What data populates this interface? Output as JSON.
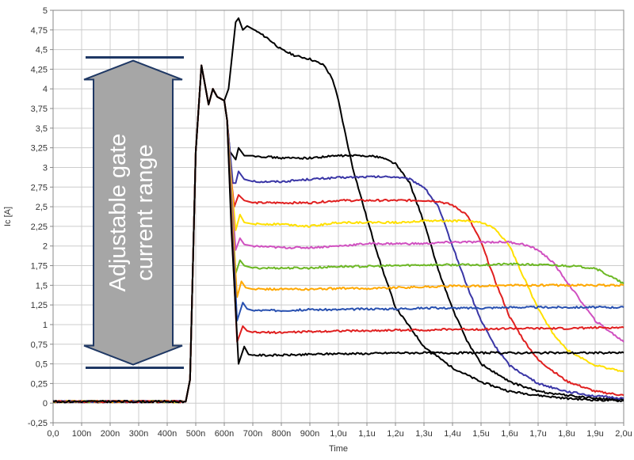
{
  "chart_data": {
    "type": "line",
    "xlabel": "Time",
    "ylabel": "Ic [A]",
    "xlim": [
      0,
      2.0
    ],
    "ylim": [
      -0.25,
      5
    ],
    "x_ticks": [
      0,
      0.1,
      0.2,
      0.3,
      0.4,
      0.5,
      0.6,
      0.7,
      0.8,
      0.9,
      1.0,
      1.1,
      1.2,
      1.3,
      1.4,
      1.5,
      1.6,
      1.7,
      1.8,
      1.9,
      2.0
    ],
    "x_tick_labels": [
      "0,0",
      "100n",
      "200n",
      "300n",
      "400n",
      "500n",
      "600n",
      "700n",
      "800n",
      "900n",
      "1,0u",
      "1,1u",
      "1,2u",
      "1,3u",
      "1,4u",
      "1,5u",
      "1,6u",
      "1,7u",
      "1,8u",
      "1,9u",
      "2,0u"
    ],
    "y_ticks": [
      -0.25,
      0,
      0.25,
      0.5,
      0.75,
      1,
      1.25,
      1.5,
      1.75,
      2,
      2.25,
      2.5,
      2.75,
      3,
      3.25,
      3.5,
      3.75,
      4,
      4.25,
      4.5,
      4.75,
      5
    ],
    "y_tick_labels": [
      "-0,25",
      "0",
      "0,25",
      "0,5",
      "0,75",
      "1",
      "1,25",
      "1,5",
      "1,75",
      "2",
      "2,25",
      "2,5",
      "2,75",
      "3",
      "3,25",
      "3,5",
      "3,75",
      "4",
      "4,25",
      "4,5",
      "4,75",
      "5"
    ],
    "grid": true,
    "series": [
      {
        "color": "#000000",
        "x": [
          0,
          0.465,
          0.48,
          0.5,
          0.52,
          0.545,
          0.56,
          0.575,
          0.6,
          0.615,
          0.64,
          0.65,
          0.665,
          0.68,
          0.705,
          0.75,
          0.8,
          0.85,
          0.9,
          0.95,
          0.98,
          1.0,
          1.02,
          1.05,
          1.1,
          1.15,
          1.2,
          1.3,
          1.4,
          1.5,
          1.6,
          1.7,
          1.8,
          1.9,
          2.0
        ],
        "y": [
          0.02,
          0.02,
          0.3,
          3.2,
          4.3,
          3.8,
          4.0,
          3.9,
          3.85,
          4.0,
          4.85,
          4.9,
          4.75,
          4.8,
          4.75,
          4.65,
          4.5,
          4.42,
          4.38,
          4.3,
          4.12,
          3.85,
          3.5,
          3.0,
          2.35,
          1.75,
          1.22,
          0.72,
          0.45,
          0.27,
          0.15,
          0.1,
          0.06,
          0.04,
          0.03
        ]
      },
      {
        "color": "#000000",
        "x": [
          0,
          0.465,
          0.48,
          0.5,
          0.52,
          0.545,
          0.56,
          0.575,
          0.6,
          0.61,
          0.62,
          0.64,
          0.65,
          0.67,
          0.7,
          0.8,
          0.9,
          1.0,
          1.1,
          1.15,
          1.2,
          1.25,
          1.3,
          1.35,
          1.4,
          1.45,
          1.5,
          1.6,
          1.7,
          1.8,
          1.9,
          2.0
        ],
        "y": [
          0.02,
          0.02,
          0.3,
          3.2,
          4.3,
          3.8,
          4.0,
          3.9,
          3.85,
          3.6,
          3.2,
          3.1,
          3.25,
          3.15,
          3.15,
          3.12,
          3.12,
          3.15,
          3.15,
          3.13,
          3.05,
          2.8,
          2.3,
          1.7,
          1.2,
          0.8,
          0.5,
          0.27,
          0.15,
          0.1,
          0.06,
          0.04
        ]
      },
      {
        "color": "#3a36a6",
        "x": [
          0,
          0.465,
          0.48,
          0.5,
          0.52,
          0.545,
          0.56,
          0.575,
          0.6,
          0.61,
          0.62,
          0.63,
          0.64,
          0.65,
          0.67,
          0.7,
          0.8,
          0.9,
          1.0,
          1.1,
          1.2,
          1.25,
          1.3,
          1.35,
          1.4,
          1.45,
          1.5,
          1.55,
          1.6,
          1.7,
          1.8,
          1.9,
          2.0
        ],
        "y": [
          0.02,
          0.02,
          0.3,
          3.2,
          4.3,
          3.8,
          4.0,
          3.9,
          3.85,
          3.6,
          3.2,
          2.8,
          2.8,
          2.95,
          2.85,
          2.82,
          2.82,
          2.85,
          2.87,
          2.88,
          2.88,
          2.85,
          2.75,
          2.5,
          2.0,
          1.5,
          1.05,
          0.72,
          0.48,
          0.25,
          0.15,
          0.09,
          0.06
        ]
      },
      {
        "color": "#e02020",
        "x": [
          0,
          0.465,
          0.48,
          0.5,
          0.52,
          0.545,
          0.56,
          0.575,
          0.6,
          0.61,
          0.62,
          0.635,
          0.65,
          0.67,
          0.7,
          0.8,
          0.9,
          1.0,
          1.1,
          1.2,
          1.3,
          1.35,
          1.4,
          1.45,
          1.5,
          1.55,
          1.6,
          1.65,
          1.7,
          1.8,
          1.9,
          2.0
        ],
        "y": [
          0.02,
          0.02,
          0.3,
          3.2,
          4.3,
          3.8,
          4.0,
          3.9,
          3.85,
          3.6,
          3.0,
          2.5,
          2.65,
          2.58,
          2.55,
          2.55,
          2.55,
          2.58,
          2.58,
          2.58,
          2.58,
          2.57,
          2.52,
          2.4,
          2.05,
          1.55,
          1.1,
          0.8,
          0.55,
          0.28,
          0.15,
          0.1
        ]
      },
      {
        "color": "#ffe000",
        "x": [
          0,
          0.465,
          0.48,
          0.5,
          0.52,
          0.545,
          0.56,
          0.575,
          0.6,
          0.61,
          0.625,
          0.64,
          0.655,
          0.67,
          0.7,
          0.8,
          0.9,
          1.0,
          1.1,
          1.2,
          1.3,
          1.4,
          1.45,
          1.5,
          1.55,
          1.6,
          1.65,
          1.7,
          1.75,
          1.8,
          1.9,
          2.0
        ],
        "y": [
          0.02,
          0.02,
          0.3,
          3.2,
          4.3,
          3.8,
          4.0,
          3.9,
          3.85,
          3.6,
          2.8,
          2.2,
          2.4,
          2.3,
          2.28,
          2.28,
          2.25,
          2.3,
          2.3,
          2.3,
          2.32,
          2.32,
          2.32,
          2.3,
          2.22,
          2.0,
          1.6,
          1.2,
          0.9,
          0.68,
          0.48,
          0.4
        ]
      },
      {
        "color": "#d050c0",
        "x": [
          0,
          0.465,
          0.48,
          0.5,
          0.52,
          0.545,
          0.56,
          0.575,
          0.6,
          0.61,
          0.625,
          0.64,
          0.655,
          0.67,
          0.7,
          0.8,
          0.9,
          1.0,
          1.1,
          1.2,
          1.3,
          1.4,
          1.5,
          1.55,
          1.6,
          1.65,
          1.7,
          1.75,
          1.8,
          1.85,
          1.9,
          2.0
        ],
        "y": [
          0.02,
          0.02,
          0.3,
          3.2,
          4.3,
          3.8,
          4.0,
          3.9,
          3.85,
          3.6,
          2.7,
          1.95,
          2.1,
          2.02,
          2.0,
          1.98,
          1.98,
          2.0,
          2.03,
          2.03,
          2.03,
          2.05,
          2.05,
          2.05,
          2.05,
          2.02,
          1.95,
          1.8,
          1.55,
          1.3,
          1.05,
          0.78
        ]
      },
      {
        "color": "#6cb824",
        "x": [
          0,
          0.465,
          0.48,
          0.5,
          0.52,
          0.545,
          0.56,
          0.575,
          0.6,
          0.61,
          0.625,
          0.64,
          0.655,
          0.67,
          0.7,
          0.8,
          0.9,
          1.0,
          1.1,
          1.2,
          1.3,
          1.4,
          1.5,
          1.6,
          1.7,
          1.8,
          1.9,
          1.95,
          2.0
        ],
        "y": [
          0.02,
          0.02,
          0.3,
          3.2,
          4.3,
          3.8,
          4.0,
          3.9,
          3.85,
          3.6,
          2.6,
          1.65,
          1.82,
          1.75,
          1.72,
          1.72,
          1.72,
          1.74,
          1.74,
          1.75,
          1.76,
          1.76,
          1.76,
          1.77,
          1.76,
          1.75,
          1.72,
          1.62,
          1.52
        ]
      },
      {
        "color": "#ffa800",
        "x": [
          0,
          0.465,
          0.48,
          0.5,
          0.52,
          0.545,
          0.56,
          0.575,
          0.6,
          0.61,
          0.625,
          0.645,
          0.66,
          0.675,
          0.7,
          0.8,
          0.9,
          1.0,
          1.1,
          1.2,
          1.3,
          1.4,
          1.5,
          1.6,
          1.7,
          1.8,
          1.9,
          2.0
        ],
        "y": [
          0.02,
          0.02,
          0.3,
          3.2,
          4.3,
          3.8,
          4.0,
          3.9,
          3.85,
          3.6,
          2.5,
          1.35,
          1.55,
          1.47,
          1.45,
          1.45,
          1.45,
          1.46,
          1.46,
          1.47,
          1.48,
          1.49,
          1.49,
          1.5,
          1.5,
          1.5,
          1.5,
          1.5
        ]
      },
      {
        "color": "#2850b0",
        "x": [
          0,
          0.465,
          0.48,
          0.5,
          0.52,
          0.545,
          0.56,
          0.575,
          0.6,
          0.61,
          0.625,
          0.645,
          0.665,
          0.68,
          0.7,
          0.8,
          0.9,
          1.0,
          1.1,
          1.2,
          1.3,
          1.4,
          1.5,
          1.6,
          1.7,
          1.8,
          1.9,
          2.0
        ],
        "y": [
          0.02,
          0.02,
          0.3,
          3.2,
          4.3,
          3.8,
          4.0,
          3.9,
          3.85,
          3.6,
          2.4,
          1.05,
          1.28,
          1.2,
          1.18,
          1.18,
          1.19,
          1.19,
          1.2,
          1.2,
          1.21,
          1.21,
          1.21,
          1.22,
          1.22,
          1.22,
          1.22,
          1.22
        ]
      },
      {
        "color": "#e02020",
        "x": [
          0,
          0.465,
          0.48,
          0.5,
          0.52,
          0.545,
          0.56,
          0.575,
          0.6,
          0.61,
          0.625,
          0.645,
          0.665,
          0.68,
          0.7,
          0.8,
          0.9,
          1.0,
          1.1,
          1.2,
          1.3,
          1.4,
          1.5,
          1.6,
          1.7,
          1.8,
          1.9,
          2.0
        ],
        "y": [
          0.02,
          0.02,
          0.3,
          3.2,
          4.3,
          3.8,
          4.0,
          3.9,
          3.85,
          3.6,
          2.3,
          0.78,
          0.98,
          0.92,
          0.9,
          0.9,
          0.91,
          0.92,
          0.92,
          0.93,
          0.93,
          0.94,
          0.94,
          0.95,
          0.95,
          0.95,
          0.96,
          0.96
        ]
      },
      {
        "color": "#000000",
        "x": [
          0,
          0.465,
          0.48,
          0.5,
          0.52,
          0.545,
          0.56,
          0.575,
          0.6,
          0.61,
          0.625,
          0.65,
          0.67,
          0.685,
          0.7,
          0.8,
          0.9,
          1.0,
          1.1,
          1.2,
          1.3,
          1.4,
          1.5,
          1.6,
          1.7,
          1.8,
          1.9,
          2.0
        ],
        "y": [
          0.02,
          0.02,
          0.3,
          3.2,
          4.3,
          3.8,
          4.0,
          3.9,
          3.85,
          3.6,
          2.2,
          0.5,
          0.72,
          0.62,
          0.61,
          0.61,
          0.62,
          0.63,
          0.63,
          0.64,
          0.64,
          0.64,
          0.64,
          0.64,
          0.64,
          0.64,
          0.64,
          0.64
        ]
      }
    ],
    "annotation": {
      "lines": [
        "Adjustable gate",
        "current range"
      ],
      "y_top": 4.4,
      "y_bottom": 0.45
    }
  },
  "colors": {
    "grid": "#cccccc",
    "axis": "#888888",
    "annotation_fill": "#a6a6a6",
    "annotation_stroke": "#1f3864"
  }
}
